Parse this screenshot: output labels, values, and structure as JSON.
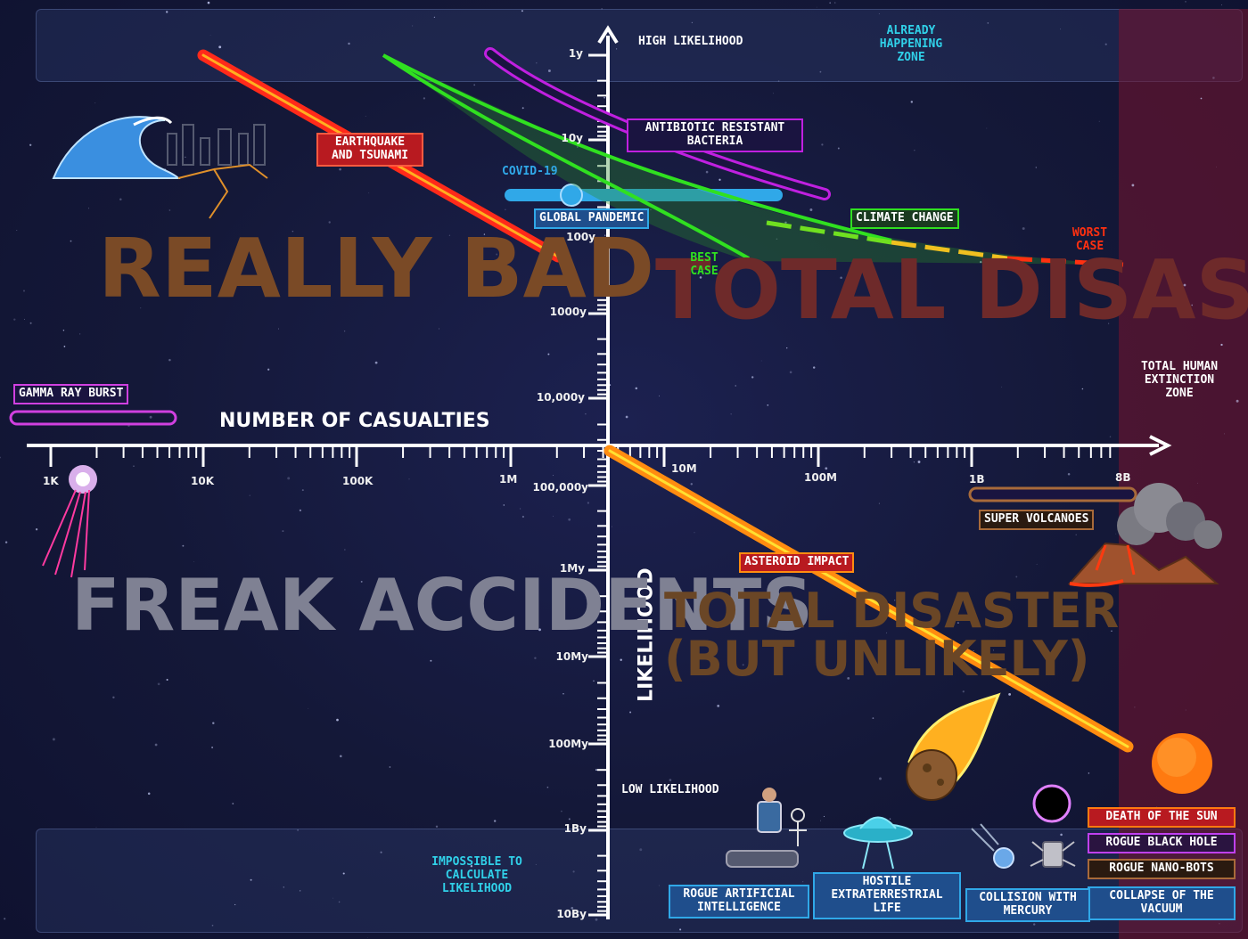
{
  "title": "",
  "zones": {
    "high_likelihood": "HIGH LIKELIHOOD",
    "low_likelihood": "LOW LIKELIHOOD",
    "already_happening": "ALREADY HAPPENING ZONE",
    "impossible": "IMPOSSIBLE TO CALCULATE LIKELIHOOD",
    "extinction": "TOTAL HUMAN EXTINCTION ZONE"
  },
  "quadrants": {
    "really_bad": "REALLY BAD",
    "total_disaster": "TOTAL DISASTER",
    "freak_accidents": "FREAK ACCIDENTS",
    "total_disaster_unlikely_1": "TOTAL DISASTER",
    "total_disaster_unlikely_2": "(BUT UNLIKELY)"
  },
  "axes": {
    "x_title": "NUMBER OF CASUALTIES",
    "y_title": "LIKELIHOOD",
    "x_ticks": [
      "1K",
      "10K",
      "100K",
      "1M",
      "10M",
      "100M",
      "1B",
      "8B"
    ],
    "y_ticks": [
      "1y",
      "10y",
      "100y",
      "1000y",
      "10,000y",
      "100,000y",
      "1My",
      "10My",
      "100My",
      "1By",
      "10By"
    ]
  },
  "risks": {
    "earthquake": "EARTHQUAKE AND TSUNAMI",
    "antibiotic": "ANTIBIOTIC RESISTANT BACTERIA",
    "covid": "COVID-19",
    "pandemic": "GLOBAL PANDEMIC",
    "climate": "CLIMATE CHANGE",
    "best_case": "BEST CASE",
    "worst_case": "WORST CASE",
    "gamma": "GAMMA RAY BURST",
    "super_volcanoes": "SUPER VOLCANOES",
    "asteroid": "ASTEROID IMPACT",
    "death_sun": "DEATH OF THE SUN",
    "black_hole": "ROGUE BLACK HOLE",
    "nanobots": "ROGUE NANO-BOTS",
    "vacuum": "COLLAPSE OF THE VACUUM",
    "ai": "ROGUE ARTIFICIAL INTELLIGENCE",
    "alien": "HOSTILE EXTRATERRESTRIAL LIFE",
    "mercury": "COLLISION WITH MERCURY"
  },
  "colors": {
    "background": "#14173a",
    "quadrant_brown": "#7a4a26",
    "quadrant_red": "#6e2a2a",
    "freak_gray": "#7f8193",
    "earthquake": "#ff2a1a",
    "antibiotic": "#c020e0",
    "covid": "#30a8e8",
    "climate": "#30e020",
    "asteroid": "#ff8c10",
    "volcano": "#a86a3a",
    "gamma": "#d040e0"
  }
}
